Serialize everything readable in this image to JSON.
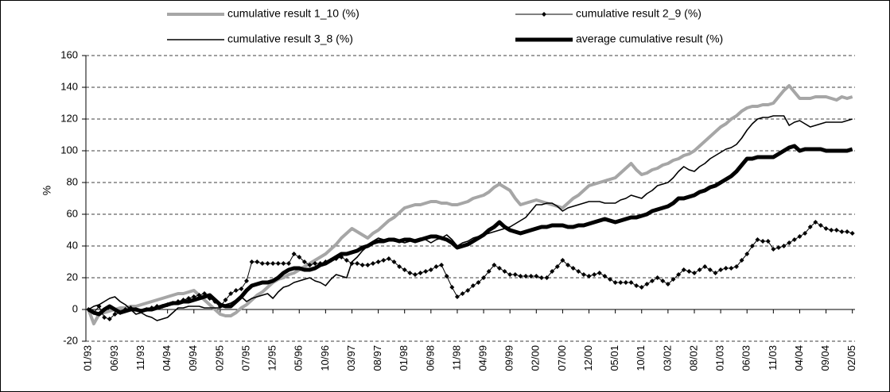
{
  "chart_data": {
    "type": "line",
    "y_label": "%",
    "categories": [
      "01/93",
      null,
      null,
      null,
      null,
      "06/93",
      null,
      null,
      null,
      null,
      "11/93",
      null,
      null,
      null,
      null,
      "04/94",
      null,
      null,
      null,
      null,
      "09/94",
      null,
      null,
      null,
      null,
      "02/95",
      null,
      null,
      null,
      null,
      "07/95",
      null,
      null,
      null,
      null,
      "12/95",
      null,
      null,
      null,
      null,
      "05/96",
      null,
      null,
      null,
      null,
      "10/96",
      null,
      null,
      null,
      null,
      "03/97",
      null,
      null,
      null,
      null,
      "08/97",
      null,
      null,
      null,
      null,
      "01/98",
      null,
      null,
      null,
      null,
      "06/98",
      null,
      null,
      null,
      null,
      "11/98",
      null,
      null,
      null,
      null,
      "04/99",
      null,
      null,
      null,
      null,
      "09/99",
      null,
      null,
      null,
      null,
      "02/00",
      null,
      null,
      null,
      null,
      "07/00",
      null,
      null,
      null,
      null,
      "12/00",
      null,
      null,
      null,
      null,
      "05/01",
      null,
      null,
      null,
      null,
      "10/01",
      null,
      null,
      null,
      null,
      "03/02",
      null,
      null,
      null,
      null,
      "08/02",
      null,
      null,
      null,
      null,
      "01/03",
      null,
      null,
      null,
      null,
      "06/03",
      null,
      null,
      null,
      null,
      "11/03",
      null,
      null,
      null,
      null,
      "04/04",
      null,
      null,
      null,
      null,
      "09/04",
      null,
      null,
      null,
      null,
      "02/05"
    ],
    "series": [
      {
        "name": "cumulative result 1_10 (%)",
        "color": "#a6a6a6",
        "width": 4,
        "marker": "none",
        "values": [
          0,
          -9,
          -3,
          -2,
          -1,
          0,
          1,
          1,
          2,
          2,
          3,
          4,
          5,
          6,
          7,
          8,
          9,
          10,
          10,
          11,
          12,
          9,
          6,
          3,
          0,
          -3,
          -4,
          -4,
          -2,
          1,
          3,
          6,
          9,
          11,
          14,
          17,
          19,
          20,
          22,
          23,
          25,
          27,
          29,
          31,
          33,
          35,
          38,
          41,
          45,
          48,
          51,
          49,
          47,
          45,
          48,
          50,
          53,
          56,
          58,
          61,
          64,
          65,
          66,
          66,
          67,
          68,
          68,
          67,
          67,
          66,
          66,
          67,
          68,
          70,
          71,
          72,
          74,
          77,
          79,
          77,
          75,
          70,
          66,
          67,
          68,
          69,
          68,
          67,
          66,
          65,
          64,
          67,
          70,
          72,
          75,
          78,
          79,
          80,
          81,
          82,
          83,
          86,
          89,
          92,
          88,
          85,
          86,
          88,
          89,
          91,
          92,
          94,
          95,
          97,
          98,
          100,
          103,
          106,
          109,
          112,
          115,
          117,
          120,
          122,
          125,
          127,
          128,
          128,
          129,
          129,
          130,
          134,
          138,
          141,
          137,
          133,
          133,
          133,
          134,
          134,
          134,
          133,
          132,
          134,
          133,
          134
        ]
      },
      {
        "name": "cumulative result 2_9 (%)",
        "color": "#000000",
        "width": 1,
        "marker": "diamond",
        "values": [
          0,
          -2,
          2,
          -5,
          -6,
          -3,
          -2,
          0,
          1,
          0,
          -1,
          0,
          1,
          2,
          2,
          3,
          4,
          5,
          6,
          7,
          8,
          9,
          10,
          7,
          5,
          2,
          6,
          10,
          12,
          13,
          18,
          30,
          30,
          29,
          29,
          29,
          29,
          29,
          29,
          35,
          33,
          30,
          28,
          29,
          29,
          30,
          31,
          32,
          33,
          31,
          29,
          29,
          28,
          28,
          29,
          30,
          31,
          32,
          30,
          27,
          25,
          23,
          22,
          23,
          24,
          25,
          27,
          28,
          21,
          14,
          8,
          10,
          12,
          15,
          17,
          20,
          24,
          28,
          26,
          24,
          22,
          22,
          21,
          21,
          21,
          21,
          20,
          20,
          24,
          27,
          31,
          28,
          26,
          24,
          22,
          21,
          22,
          23,
          21,
          19,
          17,
          17,
          17,
          17,
          15,
          14,
          16,
          18,
          20,
          18,
          16,
          19,
          22,
          25,
          24,
          23,
          25,
          27,
          25,
          23,
          25,
          26,
          26,
          27,
          31,
          35,
          40,
          44,
          43,
          43,
          38,
          39,
          40,
          42,
          44,
          46,
          48,
          52,
          55,
          53,
          51,
          50,
          50,
          49,
          49,
          48
        ]
      },
      {
        "name": "cumulative result 3_8 (%)",
        "color": "#000000",
        "width": 1.6,
        "marker": "none",
        "values": [
          0,
          2,
          3,
          5,
          7,
          8,
          5,
          3,
          0,
          -3,
          -2,
          -4,
          -5,
          -7,
          -6,
          -5,
          -2,
          1,
          1,
          2,
          2,
          2,
          1,
          1,
          1,
          1,
          3,
          4,
          6,
          8,
          5,
          7,
          8,
          9,
          10,
          7,
          11,
          14,
          15,
          17,
          18,
          19,
          20,
          18,
          17,
          15,
          19,
          22,
          21,
          20,
          30,
          33,
          37,
          40,
          43,
          45,
          44,
          44,
          43,
          43,
          42,
          43,
          44,
          45,
          44,
          42,
          44,
          45,
          47,
          44,
          40,
          42,
          43,
          45,
          46,
          47,
          48,
          49,
          50,
          51,
          52,
          54,
          56,
          58,
          62,
          66,
          66,
          67,
          67,
          65,
          62,
          64,
          65,
          66,
          67,
          68,
          68,
          68,
          67,
          67,
          67,
          69,
          70,
          72,
          71,
          70,
          73,
          75,
          78,
          79,
          80,
          83,
          87,
          90,
          88,
          87,
          90,
          92,
          95,
          97,
          99,
          101,
          102,
          104,
          108,
          113,
          117,
          120,
          121,
          121,
          122,
          122,
          122,
          116,
          118,
          119,
          117,
          115,
          116,
          117,
          118,
          118,
          118,
          118,
          119,
          120
        ]
      },
      {
        "name": "average cumulative result (%)",
        "color": "#000000",
        "width": 5,
        "marker": "none",
        "values": [
          0,
          -2,
          -3,
          0,
          2,
          0,
          -2,
          -1,
          0,
          0,
          -1,
          0,
          0,
          1,
          2,
          3,
          4,
          4,
          5,
          5,
          6,
          7,
          8,
          9,
          6,
          3,
          2,
          2,
          5,
          8,
          12,
          15,
          16,
          17,
          17,
          18,
          20,
          23,
          25,
          26,
          26,
          25,
          25,
          26,
          28,
          29,
          31,
          33,
          35,
          35,
          36,
          37,
          39,
          40,
          42,
          43,
          43,
          44,
          44,
          43,
          44,
          44,
          43,
          44,
          45,
          46,
          46,
          45,
          44,
          42,
          39,
          40,
          41,
          43,
          45,
          47,
          50,
          52,
          55,
          52,
          50,
          49,
          48,
          49,
          50,
          51,
          52,
          52,
          53,
          53,
          53,
          52,
          52,
          53,
          53,
          54,
          55,
          56,
          57,
          56,
          55,
          56,
          57,
          58,
          58,
          59,
          60,
          62,
          63,
          64,
          65,
          67,
          70,
          70,
          71,
          72,
          74,
          75,
          77,
          78,
          80,
          82,
          84,
          87,
          91,
          95,
          95,
          96,
          96,
          96,
          96,
          98,
          100,
          102,
          103,
          100,
          101,
          101,
          101,
          101,
          100,
          100,
          100,
          100,
          100,
          101
        ]
      }
    ],
    "ylim": [
      -20,
      160
    ],
    "yticks": [
      -20,
      0,
      20,
      40,
      60,
      80,
      100,
      120,
      140,
      160
    ],
    "grid": true,
    "legend": "top"
  }
}
